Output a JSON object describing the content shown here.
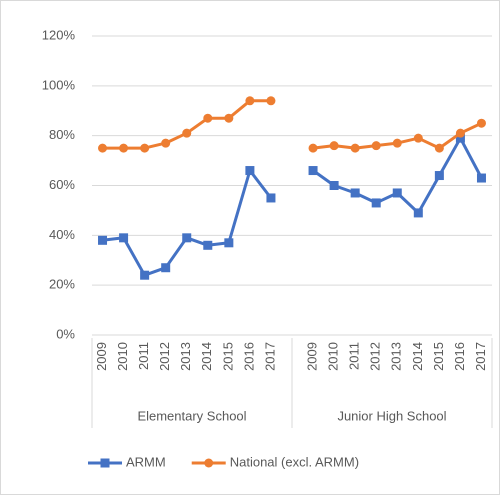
{
  "chart_data": {
    "type": "line",
    "categories": [
      "2009",
      "2010",
      "2011",
      "2012",
      "2013",
      "2014",
      "2015",
      "2016",
      "2017",
      null,
      "2009",
      "2010",
      "2011",
      "2012",
      "2013",
      "2014",
      "2015",
      "2016",
      "2017"
    ],
    "group_labels": [
      "Elementary School",
      "Junior High School"
    ],
    "series": [
      {
        "name": "ARMM",
        "color": "#4472c4",
        "marker": "square",
        "values": [
          38,
          39,
          24,
          27,
          39,
          36,
          37,
          66,
          55,
          null,
          66,
          60,
          57,
          53,
          57,
          49,
          64,
          79,
          63
        ]
      },
      {
        "name": "National (excl. ARMM)",
        "color": "#ed7d31",
        "marker": "circle",
        "values": [
          75,
          75,
          75,
          77,
          81,
          87,
          87,
          94,
          94,
          null,
          75,
          76,
          75,
          76,
          77,
          79,
          75,
          81,
          85
        ]
      }
    ],
    "ylim": [
      0,
      120
    ],
    "yticks": [
      {
        "value": 0,
        "label": "0%"
      },
      {
        "value": 20,
        "label": "20%"
      },
      {
        "value": 40,
        "label": "40%"
      },
      {
        "value": 60,
        "label": "60%"
      },
      {
        "value": 80,
        "label": "80%"
      },
      {
        "value": 100,
        "label": "100%"
      },
      {
        "value": 120,
        "label": "120%"
      }
    ],
    "grid": true,
    "legend": "bottom"
  }
}
